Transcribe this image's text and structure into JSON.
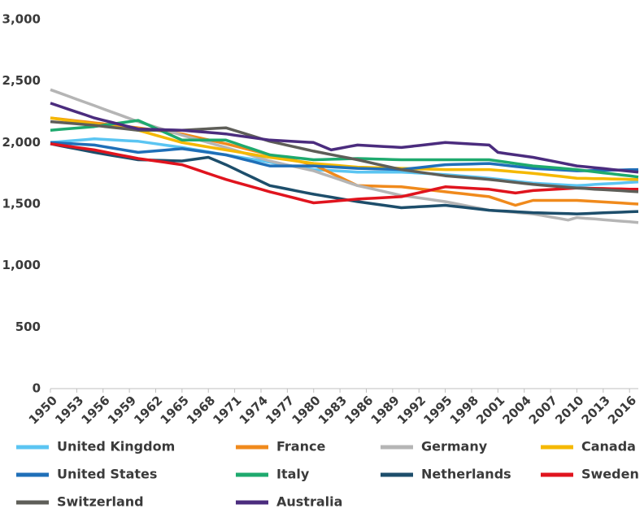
{
  "chart_data": {
    "type": "line",
    "x": [
      1950,
      1951,
      1952,
      1953,
      1954,
      1955,
      1956,
      1957,
      1958,
      1959,
      1960,
      1961,
      1962,
      1963,
      1964,
      1965,
      1966,
      1967,
      1968,
      1969,
      1970,
      1971,
      1972,
      1973,
      1974,
      1975,
      1976,
      1977,
      1978,
      1979,
      1980,
      1981,
      1982,
      1983,
      1984,
      1985,
      1986,
      1987,
      1988,
      1989,
      1990,
      1991,
      1992,
      1993,
      1994,
      1995,
      1996,
      1997,
      1998,
      1999,
      2000,
      2001,
      2002,
      2003,
      2004,
      2005,
      2006,
      2007,
      2008,
      2009,
      2010,
      2011,
      2012,
      2013,
      2014,
      2015,
      2016,
      2017
    ],
    "xlim": [
      1950,
      2017
    ],
    "xticks": [
      1950,
      1953,
      1956,
      1959,
      1962,
      1965,
      1968,
      1971,
      1974,
      1977,
      1980,
      1983,
      1986,
      1989,
      1992,
      1995,
      1998,
      2001,
      2004,
      2007,
      2010,
      2013,
      2016
    ],
    "ylim": [
      0,
      3000
    ],
    "yticks": [
      0,
      500,
      {
        "value": 1000,
        "label": "1,000"
      },
      {
        "value": 1500,
        "label": "1,500"
      },
      {
        "value": 2000,
        "label": "2,000"
      },
      {
        "value": 2500,
        "label": "2,500"
      },
      {
        "value": 3000,
        "label": "3,000"
      }
    ],
    "grid": false,
    "legend": "bottom",
    "series": [
      {
        "name": "United Kingdom",
        "color": "#5bc5f2",
        "values": [
          2000,
          2006,
          2012,
          2018,
          2024,
          2030,
          2026,
          2022,
          2018,
          2014,
          2010,
          2000,
          1990,
          1980,
          1970,
          1960,
          1948,
          1936,
          1924,
          1912,
          1900,
          1888,
          1876,
          1864,
          1852,
          1840,
          1828,
          1816,
          1804,
          1792,
          1780,
          1776,
          1772,
          1768,
          1764,
          1760,
          1760,
          1760,
          1760,
          1760,
          1760,
          1756,
          1752,
          1748,
          1744,
          1740,
          1734,
          1728,
          1722,
          1716,
          1710,
          1702,
          1694,
          1686,
          1678,
          1670,
          1666,
          1662,
          1658,
          1654,
          1650,
          1654,
          1659,
          1663,
          1667,
          1671,
          1676,
          1680
        ]
      },
      {
        "name": "France",
        "color": "#f08a1c",
        "values": [
          2200,
          2192,
          2184,
          2176,
          2168,
          2160,
          2152,
          2144,
          2136,
          2128,
          2120,
          2110,
          2100,
          2090,
          2080,
          2070,
          2054,
          2038,
          2022,
          2006,
          1990,
          1972,
          1954,
          1936,
          1918,
          1900,
          1884,
          1868,
          1852,
          1836,
          1820,
          1786,
          1752,
          1718,
          1684,
          1650,
          1648,
          1646,
          1644,
          1642,
          1640,
          1632,
          1624,
          1616,
          1608,
          1600,
          1592,
          1584,
          1576,
          1568,
          1560,
          1537,
          1513,
          1490,
          1510,
          1530,
          1530,
          1530,
          1530,
          1530,
          1530,
          1526,
          1521,
          1517,
          1513,
          1509,
          1504,
          1500
        ]
      },
      {
        "name": "Germany",
        "color": "#b5b5b5",
        "values": [
          2430,
          2404,
          2378,
          2352,
          2326,
          2300,
          2274,
          2248,
          2222,
          2196,
          2170,
          2148,
          2126,
          2104,
          2082,
          2060,
          2040,
          2020,
          2000,
          1980,
          1960,
          1938,
          1916,
          1894,
          1872,
          1850,
          1834,
          1818,
          1802,
          1786,
          1770,
          1746,
          1722,
          1698,
          1674,
          1650,
          1634,
          1618,
          1602,
          1586,
          1570,
          1560,
          1550,
          1540,
          1530,
          1520,
          1506,
          1492,
          1478,
          1464,
          1450,
          1444,
          1438,
          1432,
          1426,
          1420,
          1408,
          1395,
          1383,
          1370,
          1390,
          1384,
          1379,
          1373,
          1367,
          1361,
          1356,
          1350
        ]
      },
      {
        "name": "Canada",
        "color": "#f5b800",
        "values": [
          2200,
          2190,
          2180,
          2170,
          2160,
          2150,
          2140,
          2130,
          2120,
          2110,
          2100,
          2080,
          2060,
          2040,
          2020,
          2000,
          1988,
          1976,
          1964,
          1952,
          1940,
          1928,
          1916,
          1904,
          1892,
          1880,
          1870,
          1860,
          1850,
          1840,
          1830,
          1824,
          1818,
          1812,
          1806,
          1800,
          1798,
          1796,
          1794,
          1792,
          1790,
          1788,
          1786,
          1784,
          1782,
          1780,
          1780,
          1780,
          1780,
          1780,
          1780,
          1774,
          1768,
          1762,
          1756,
          1750,
          1742,
          1734,
          1726,
          1718,
          1710,
          1709,
          1707,
          1706,
          1704,
          1703,
          1701,
          1700
        ]
      },
      {
        "name": "United States",
        "color": "#1f6fb8",
        "values": [
          2000,
          1996,
          1992,
          1988,
          1984,
          1980,
          1968,
          1956,
          1944,
          1932,
          1920,
          1926,
          1932,
          1938,
          1944,
          1950,
          1940,
          1930,
          1920,
          1910,
          1900,
          1882,
          1864,
          1846,
          1828,
          1810,
          1810,
          1810,
          1810,
          1810,
          1810,
          1806,
          1802,
          1798,
          1794,
          1790,
          1788,
          1786,
          1784,
          1782,
          1780,
          1788,
          1796,
          1804,
          1812,
          1820,
          1822,
          1824,
          1826,
          1828,
          1830,
          1822,
          1814,
          1806,
          1798,
          1790,
          1786,
          1782,
          1778,
          1774,
          1770,
          1771,
          1773,
          1774,
          1776,
          1777,
          1779,
          1780
        ]
      },
      {
        "name": "Italy",
        "color": "#1eaa6e",
        "values": [
          2100,
          2106,
          2112,
          2118,
          2124,
          2130,
          2140,
          2150,
          2160,
          2170,
          2180,
          2148,
          2116,
          2084,
          2052,
          2020,
          2020,
          2020,
          2020,
          2020,
          2020,
          1996,
          1972,
          1948,
          1924,
          1900,
          1892,
          1884,
          1876,
          1868,
          1860,
          1862,
          1864,
          1866,
          1868,
          1870,
          1868,
          1866,
          1864,
          1862,
          1860,
          1860,
          1860,
          1860,
          1860,
          1860,
          1860,
          1860,
          1860,
          1860,
          1860,
          1850,
          1840,
          1830,
          1820,
          1810,
          1804,
          1798,
          1792,
          1786,
          1780,
          1771,
          1763,
          1754,
          1746,
          1737,
          1729,
          1720
        ]
      },
      {
        "name": "Netherlands",
        "color": "#1d4e6b",
        "values": [
          1990,
          1976,
          1962,
          1948,
          1934,
          1920,
          1908,
          1896,
          1884,
          1872,
          1860,
          1858,
          1856,
          1854,
          1852,
          1850,
          1860,
          1870,
          1880,
          1850,
          1820,
          1786,
          1752,
          1718,
          1684,
          1650,
          1636,
          1622,
          1608,
          1594,
          1580,
          1568,
          1556,
          1544,
          1532,
          1520,
          1510,
          1500,
          1490,
          1480,
          1470,
          1474,
          1478,
          1482,
          1486,
          1490,
          1482,
          1474,
          1466,
          1458,
          1450,
          1446,
          1442,
          1438,
          1434,
          1430,
          1428,
          1426,
          1424,
          1422,
          1420,
          1423,
          1426,
          1429,
          1431,
          1434,
          1437,
          1440
        ]
      },
      {
        "name": "Sweden",
        "color": "#e0141e",
        "values": [
          1990,
          1980,
          1970,
          1960,
          1950,
          1940,
          1926,
          1912,
          1898,
          1884,
          1870,
          1860,
          1850,
          1840,
          1830,
          1820,
          1796,
          1772,
          1748,
          1724,
          1700,
          1680,
          1660,
          1640,
          1620,
          1600,
          1582,
          1564,
          1546,
          1528,
          1510,
          1516,
          1522,
          1528,
          1534,
          1540,
          1544,
          1548,
          1552,
          1556,
          1560,
          1576,
          1592,
          1608,
          1624,
          1640,
          1636,
          1632,
          1628,
          1624,
          1620,
          1610,
          1600,
          1590,
          1600,
          1610,
          1614,
          1618,
          1622,
          1626,
          1630,
          1629,
          1627,
          1626,
          1624,
          1623,
          1621,
          1620
        ]
      },
      {
        "name": "Switzerland",
        "color": "#5e5e58",
        "values": [
          2170,
          2164,
          2158,
          2152,
          2146,
          2140,
          2132,
          2124,
          2116,
          2108,
          2100,
          2100,
          2100,
          2100,
          2100,
          2100,
          2104,
          2108,
          2112,
          2116,
          2120,
          2098,
          2076,
          2054,
          2032,
          2010,
          1994,
          1978,
          1962,
          1946,
          1930,
          1916,
          1902,
          1888,
          1874,
          1860,
          1844,
          1828,
          1812,
          1796,
          1780,
          1770,
          1760,
          1750,
          1740,
          1730,
          1724,
          1718,
          1712,
          1706,
          1700,
          1692,
          1684,
          1676,
          1668,
          1660,
          1654,
          1648,
          1642,
          1636,
          1630,
          1626,
          1621,
          1617,
          1613,
          1609,
          1604,
          1600
        ]
      },
      {
        "name": "Australia",
        "color": "#4b2c7e",
        "values": [
          2320,
          2296,
          2272,
          2248,
          2224,
          2200,
          2182,
          2164,
          2146,
          2128,
          2110,
          2108,
          2106,
          2104,
          2102,
          2100,
          2094,
          2088,
          2082,
          2076,
          2070,
          2060,
          2050,
          2040,
          2030,
          2020,
          2016,
          2012,
          2008,
          2004,
          2000,
          1970,
          1940,
          1953,
          1967,
          1980,
          1976,
          1972,
          1968,
          1964,
          1960,
          1968,
          1976,
          1984,
          1992,
          2000,
          1996,
          1992,
          1988,
          1984,
          1980,
          1920,
          1910,
          1900,
          1890,
          1880,
          1866,
          1852,
          1838,
          1824,
          1810,
          1803,
          1796,
          1789,
          1781,
          1774,
          1767,
          1760
        ]
      }
    ]
  }
}
